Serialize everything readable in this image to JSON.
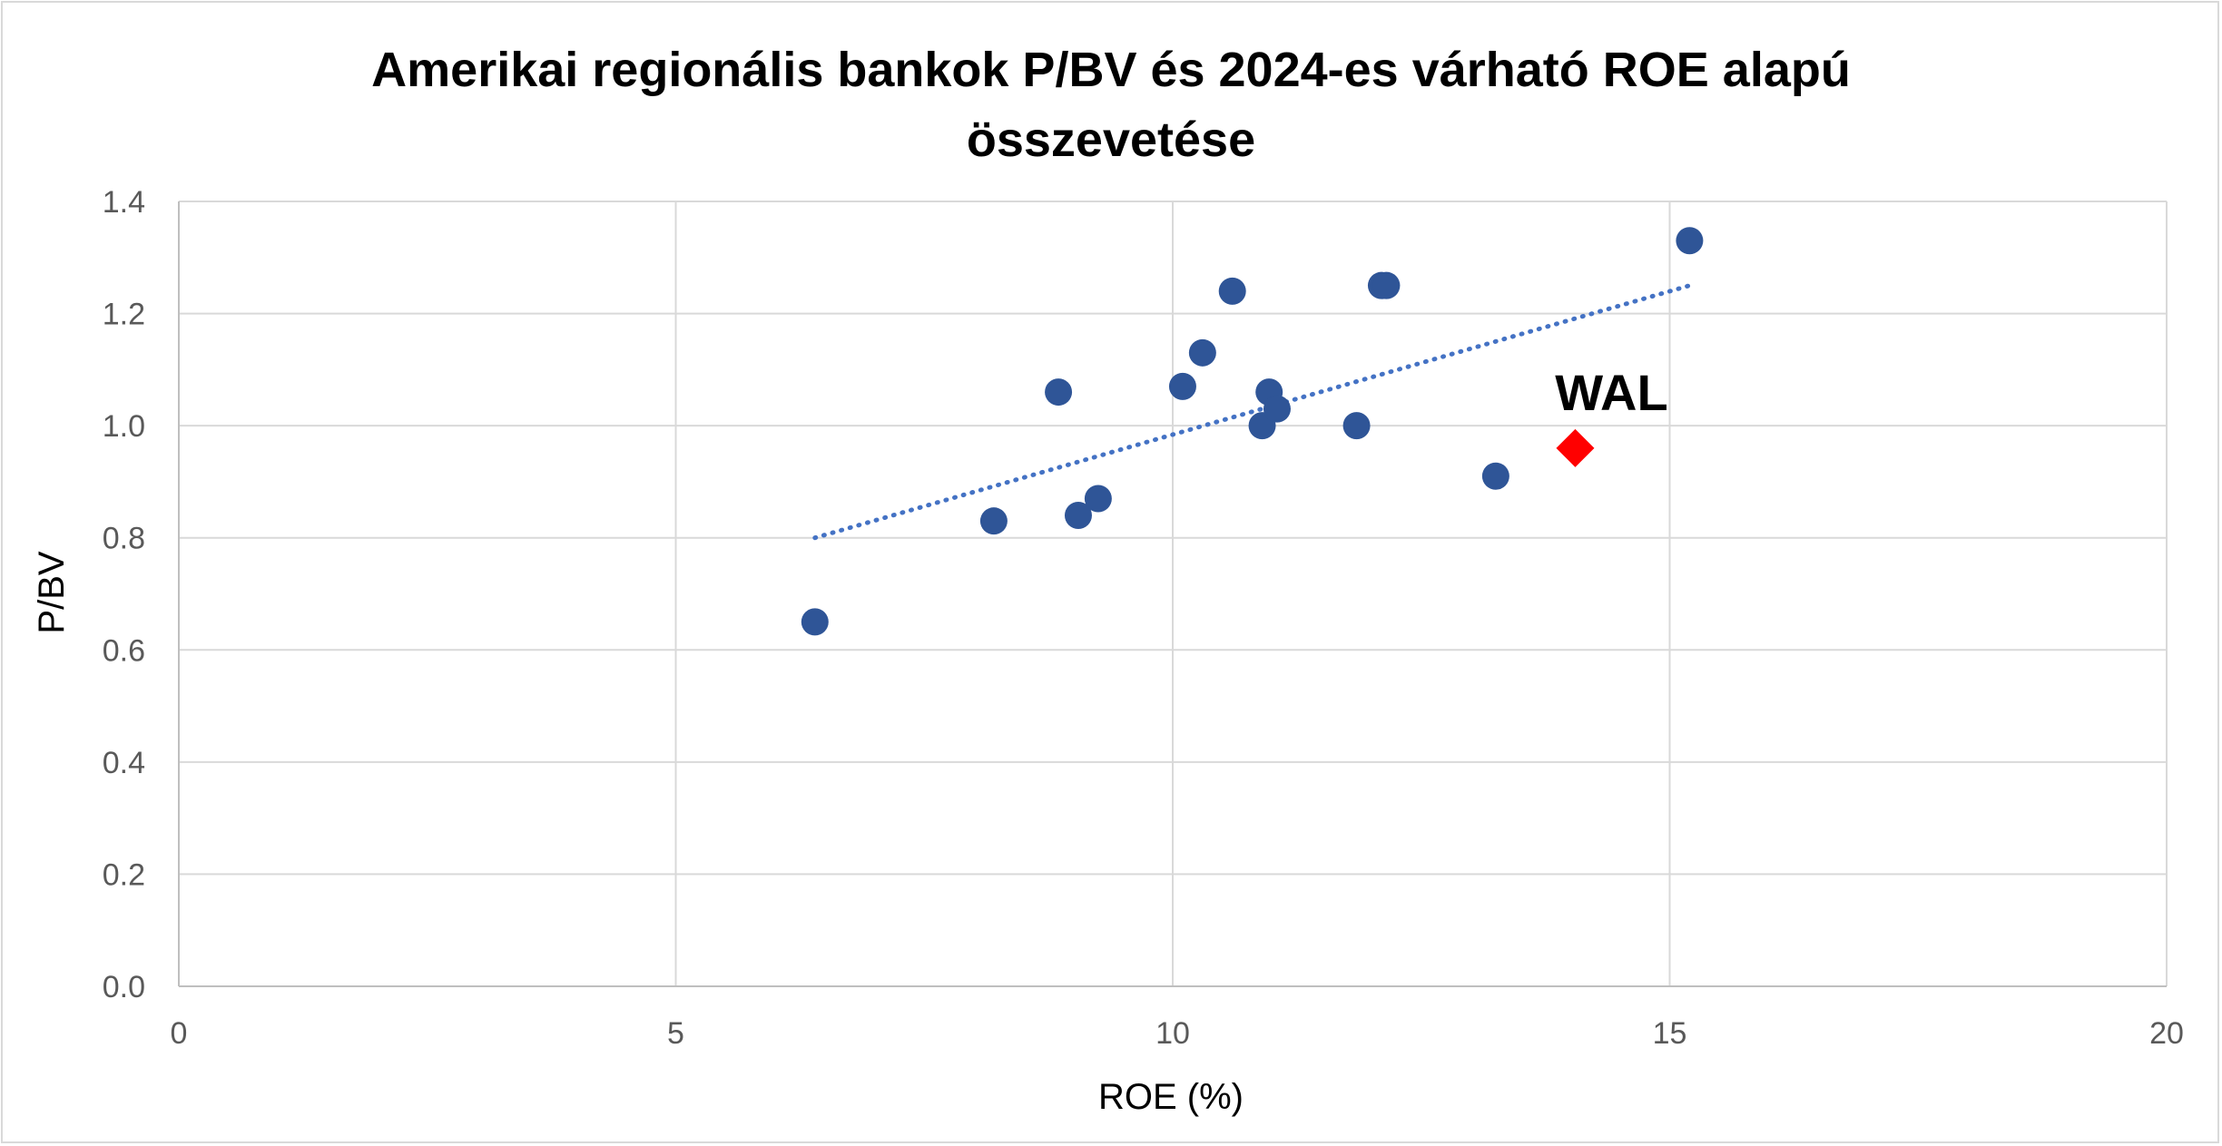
{
  "chart_data": {
    "type": "scatter",
    "title_lines": [
      "Amerikai regionális bankok P/BV és 2024-es várható ROE alapú",
      "összevetése"
    ],
    "xlabel": "ROE (%)",
    "ylabel": "P/BV",
    "xlim": [
      0,
      20
    ],
    "ylim": [
      0,
      1.4
    ],
    "x_ticks": [
      "0",
      "5",
      "10",
      "15",
      "20"
    ],
    "y_ticks": [
      "0.0",
      "0.2",
      "0.4",
      "0.6",
      "0.8",
      "1.0",
      "1.2",
      "1.4"
    ],
    "grid": true,
    "series": [
      {
        "marker": "circle",
        "color": "#2f5597",
        "points": [
          {
            "x": 6.4,
            "y": 0.65
          },
          {
            "x": 8.2,
            "y": 0.83
          },
          {
            "x": 8.85,
            "y": 1.06
          },
          {
            "x": 9.05,
            "y": 0.84
          },
          {
            "x": 9.25,
            "y": 0.87
          },
          {
            "x": 10.1,
            "y": 1.07
          },
          {
            "x": 10.3,
            "y": 1.13
          },
          {
            "x": 10.6,
            "y": 1.24
          },
          {
            "x": 10.9,
            "y": 1.0
          },
          {
            "x": 10.97,
            "y": 1.06
          },
          {
            "x": 11.05,
            "y": 1.03
          },
          {
            "x": 11.85,
            "y": 1.0
          },
          {
            "x": 12.1,
            "y": 1.25
          },
          {
            "x": 12.15,
            "y": 1.25
          },
          {
            "x": 13.25,
            "y": 0.91
          },
          {
            "x": 15.2,
            "y": 1.33
          }
        ]
      },
      {
        "marker": "diamond",
        "color": "#ff0000",
        "points": [
          {
            "x": 14.05,
            "y": 0.96
          }
        ]
      }
    ],
    "trendline": {
      "style": "dotted",
      "color": "#4472c4",
      "x": [
        6.4,
        15.2
      ],
      "y": [
        0.8,
        1.25
      ]
    },
    "annotations": [
      {
        "text": "WAL",
        "x": 14.05,
        "y": 0.96
      }
    ]
  }
}
